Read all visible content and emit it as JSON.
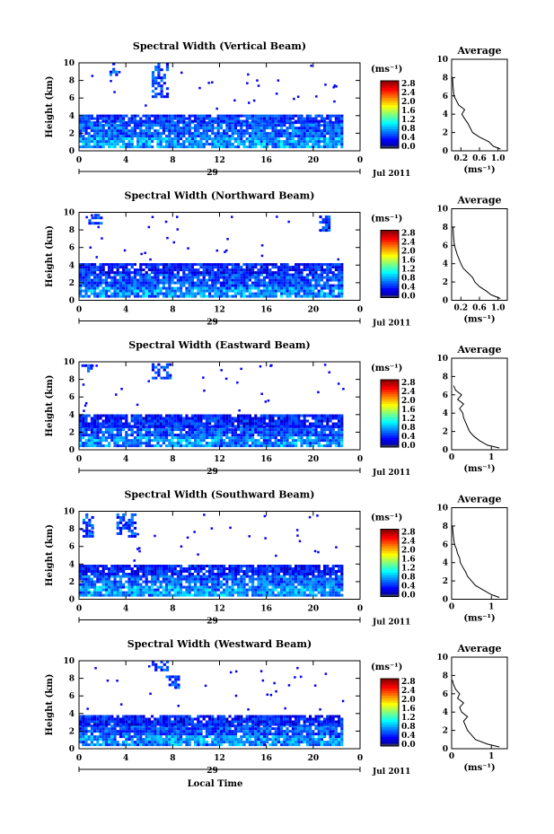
{
  "figure": {
    "xlabel": "Local Time",
    "date_suffix": "Jul 2011",
    "day_label": "29",
    "colorbar_unit": "(ms⁻¹)",
    "average_title": "Average",
    "average_unit": "(ms⁻¹)",
    "ylabel": "Height (km)"
  },
  "chart_data": [
    {
      "type": "heatmap",
      "title": "Spectral Width (Vertical Beam)",
      "ylabel": "Height (km)",
      "xlabel": "",
      "xlim": [
        0,
        24
      ],
      "ylim": [
        0,
        10
      ],
      "x_ticks": [
        "0",
        "4",
        "8",
        "12",
        "16",
        "20",
        "0"
      ],
      "y_ticks": [
        "0",
        "2",
        "4",
        "6",
        "8",
        "10"
      ],
      "colorbar": {
        "unit": "(ms⁻¹)",
        "ticks": [
          "0.0",
          "0.4",
          "0.8",
          "1.2",
          "1.6",
          "2.0",
          "2.4",
          "2.8"
        ]
      },
      "layers": [
        {
          "xmin": 0,
          "xmax": 22.5,
          "hmin": 0.3,
          "hmax": 3.2,
          "value": 0.5
        },
        {
          "xmin": 0,
          "xmax": 22.5,
          "hmin": 3.2,
          "hmax": 4.1,
          "value": 0.35
        },
        {
          "xmin": 6.2,
          "xmax": 7.6,
          "hmin": 6.0,
          "hmax": 9.8,
          "value": 0.4
        },
        {
          "xmin": 2.6,
          "xmax": 3.2,
          "hmin": 8.5,
          "hmax": 9.8,
          "value": 0.4
        }
      ],
      "average": {
        "x_ticks": [
          "0.2",
          "0.6",
          "1.0"
        ],
        "xlim": [
          0,
          1.2
        ],
        "profile": [
          [
            1.05,
            0.2
          ],
          [
            0.9,
            0.5
          ],
          [
            0.8,
            1.0
          ],
          [
            0.6,
            1.5
          ],
          [
            0.45,
            2.0
          ],
          [
            0.4,
            2.5
          ],
          [
            0.35,
            3.0
          ],
          [
            0.28,
            3.5
          ],
          [
            0.22,
            4.0
          ],
          [
            0.28,
            4.5
          ],
          [
            0.15,
            5.0
          ],
          [
            0.1,
            5.5
          ],
          [
            0.05,
            6.0
          ],
          [
            0.03,
            7.0
          ],
          [
            0.02,
            8.0
          ]
        ]
      }
    },
    {
      "type": "heatmap",
      "title": "Spectral Width (Northward Beam)",
      "ylabel": "Height (km)",
      "xlabel": "",
      "xlim": [
        0,
        24
      ],
      "ylim": [
        0,
        10
      ],
      "x_ticks": [
        "0",
        "4",
        "8",
        "12",
        "16",
        "20",
        "0"
      ],
      "y_ticks": [
        "0",
        "2",
        "4",
        "6",
        "8",
        "10"
      ],
      "colorbar": {
        "unit": "(ms⁻¹)",
        "ticks": [
          "0.0",
          "0.4",
          "0.8",
          "1.2",
          "1.6",
          "2.0",
          "2.4",
          "2.8"
        ]
      },
      "layers": [
        {
          "xmin": 0,
          "xmax": 22.5,
          "hmin": 0.3,
          "hmax": 3.0,
          "value": 0.45
        },
        {
          "xmin": 0,
          "xmax": 22.5,
          "hmin": 3.0,
          "hmax": 4.0,
          "value": 0.3
        },
        {
          "xmin": 0.8,
          "xmax": 1.8,
          "hmin": 8.6,
          "hmax": 9.6,
          "value": 0.4
        },
        {
          "xmin": 20.5,
          "xmax": 21.4,
          "hmin": 7.8,
          "hmax": 9.6,
          "value": 0.4
        }
      ],
      "average": {
        "x_ticks": [
          "0.2",
          "0.6",
          "1.0"
        ],
        "xlim": [
          0,
          1.2
        ],
        "profile": [
          [
            1.05,
            0.2
          ],
          [
            0.85,
            0.6
          ],
          [
            0.75,
            1.0
          ],
          [
            0.6,
            1.5
          ],
          [
            0.5,
            2.0
          ],
          [
            0.45,
            2.5
          ],
          [
            0.35,
            3.0
          ],
          [
            0.25,
            3.5
          ],
          [
            0.2,
            4.0
          ],
          [
            0.12,
            5.0
          ],
          [
            0.06,
            6.0
          ],
          [
            0.04,
            7.0
          ],
          [
            0.03,
            8.0
          ]
        ]
      }
    },
    {
      "type": "heatmap",
      "title": "Spectral Width (Eastward Beam)",
      "ylabel": "Height (km)",
      "xlabel": "",
      "xlim": [
        0,
        24
      ],
      "ylim": [
        0,
        10
      ],
      "x_ticks": [
        "0",
        "4",
        "8",
        "12",
        "16",
        "20",
        "0"
      ],
      "y_ticks": [
        "0",
        "2",
        "4",
        "6",
        "8",
        "10"
      ],
      "colorbar": {
        "unit": "(ms⁻¹)",
        "ticks": [
          "0.0",
          "0.4",
          "0.8",
          "1.2",
          "1.6",
          "2.0",
          "2.4",
          "2.8"
        ]
      },
      "layers": [
        {
          "xmin": 0,
          "xmax": 22.5,
          "hmin": 0.3,
          "hmax": 2.5,
          "value": 0.45
        },
        {
          "xmin": 0,
          "xmax": 22.5,
          "hmin": 2.5,
          "hmax": 3.8,
          "value": 0.3
        },
        {
          "xmin": 6.2,
          "xmax": 7.8,
          "hmin": 8.0,
          "hmax": 9.6,
          "value": 0.4
        },
        {
          "xmin": 0.2,
          "xmax": 1.0,
          "hmin": 8.8,
          "hmax": 9.6,
          "value": 0.4
        }
      ],
      "average": {
        "x_ticks": [
          "0",
          "1"
        ],
        "xlim": [
          0,
          1.4
        ],
        "profile": [
          [
            1.2,
            0.2
          ],
          [
            0.9,
            0.5
          ],
          [
            0.7,
            1.0
          ],
          [
            0.55,
            1.5
          ],
          [
            0.45,
            2.0
          ],
          [
            0.4,
            2.5
          ],
          [
            0.35,
            3.0
          ],
          [
            0.3,
            3.5
          ],
          [
            0.28,
            4.0
          ],
          [
            0.2,
            4.5
          ],
          [
            0.3,
            5.0
          ],
          [
            0.15,
            5.5
          ],
          [
            0.25,
            6.0
          ],
          [
            0.1,
            6.5
          ],
          [
            0.05,
            7.0
          ]
        ]
      }
    },
    {
      "type": "heatmap",
      "title": "Spectral Width (Southward Beam)",
      "ylabel": "Height (km)",
      "xlabel": "",
      "xlim": [
        0,
        24
      ],
      "ylim": [
        0,
        10
      ],
      "x_ticks": [
        "0",
        "4",
        "8",
        "12",
        "16",
        "20",
        "0"
      ],
      "y_ticks": [
        "0",
        "2",
        "4",
        "6",
        "8",
        "10"
      ],
      "colorbar": {
        "unit": "(ms⁻¹)",
        "ticks": [
          "0.0",
          "0.4",
          "0.8",
          "1.2",
          "1.6",
          "2.0",
          "2.4",
          "2.8"
        ]
      },
      "layers": [
        {
          "xmin": 0,
          "xmax": 22.5,
          "hmin": 0.3,
          "hmax": 2.7,
          "value": 0.5
        },
        {
          "xmin": 0,
          "xmax": 22.5,
          "hmin": 2.7,
          "hmax": 3.9,
          "value": 0.3
        },
        {
          "xmin": 3.2,
          "xmax": 4.8,
          "hmin": 7.0,
          "hmax": 9.6,
          "value": 0.4
        },
        {
          "xmin": 0.3,
          "xmax": 1.2,
          "hmin": 7.0,
          "hmax": 9.6,
          "value": 0.4
        }
      ],
      "average": {
        "x_ticks": [
          "0",
          "1"
        ],
        "xlim": [
          0,
          1.4
        ],
        "profile": [
          [
            1.2,
            0.2
          ],
          [
            1.0,
            0.5
          ],
          [
            0.8,
            1.0
          ],
          [
            0.6,
            1.5
          ],
          [
            0.5,
            2.0
          ],
          [
            0.4,
            2.5
          ],
          [
            0.35,
            3.0
          ],
          [
            0.28,
            3.5
          ],
          [
            0.22,
            4.0
          ],
          [
            0.2,
            4.5
          ],
          [
            0.15,
            5.0
          ],
          [
            0.12,
            5.5
          ],
          [
            0.07,
            6.0
          ],
          [
            0.04,
            7.0
          ],
          [
            0.02,
            8.0
          ]
        ]
      }
    },
    {
      "type": "heatmap",
      "title": "Spectral Width (Westward Beam)",
      "ylabel": "Height (km)",
      "xlabel": "Local Time",
      "xlim": [
        0,
        24
      ],
      "ylim": [
        0,
        10
      ],
      "x_ticks": [
        "0",
        "4",
        "8",
        "12",
        "16",
        "20",
        "0"
      ],
      "y_ticks": [
        "0",
        "2",
        "4",
        "6",
        "8",
        "10"
      ],
      "colorbar": {
        "unit": "(ms⁻¹)",
        "ticks": [
          "0.0",
          "0.4",
          "0.8",
          "1.2",
          "1.6",
          "2.0",
          "2.4",
          "2.8"
        ]
      },
      "layers": [
        {
          "xmin": 0,
          "xmax": 22.5,
          "hmin": 0.3,
          "hmax": 2.6,
          "value": 0.45
        },
        {
          "xmin": 0,
          "xmax": 22.5,
          "hmin": 2.6,
          "hmax": 3.8,
          "value": 0.3
        },
        {
          "xmin": 6.2,
          "xmax": 7.6,
          "hmin": 8.8,
          "hmax": 9.8,
          "value": 0.4
        },
        {
          "xmin": 7.4,
          "xmax": 8.4,
          "hmin": 6.8,
          "hmax": 8.2,
          "value": 0.4
        }
      ],
      "average": {
        "x_ticks": [
          "0",
          "1"
        ],
        "xlim": [
          0,
          1.4
        ],
        "profile": [
          [
            1.2,
            0.2
          ],
          [
            0.9,
            0.5
          ],
          [
            0.6,
            1.0
          ],
          [
            0.5,
            1.5
          ],
          [
            0.4,
            2.0
          ],
          [
            0.35,
            2.5
          ],
          [
            0.3,
            3.0
          ],
          [
            0.4,
            3.5
          ],
          [
            0.25,
            4.0
          ],
          [
            0.2,
            4.5
          ],
          [
            0.3,
            5.0
          ],
          [
            0.15,
            5.5
          ],
          [
            0.2,
            6.0
          ],
          [
            0.1,
            6.5
          ],
          [
            0.05,
            7.0
          ],
          [
            0.02,
            7.5
          ]
        ]
      }
    }
  ]
}
